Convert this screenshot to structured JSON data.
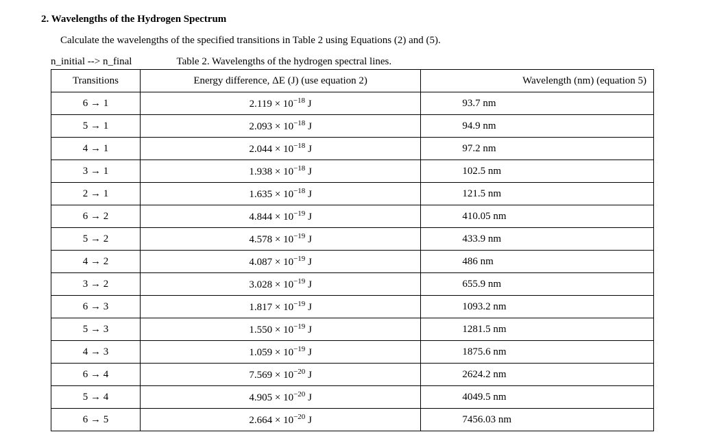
{
  "heading": "2. Wavelengths of the Hydrogen Spectrum",
  "instruction": "Calculate the wavelengths of the specified transitions in Table 2 using Equations (2) and (5).",
  "labels": {
    "left": "n_initial  -->  n_final",
    "caption": "Table 2. Wavelengths of the hydrogen spectral lines."
  },
  "headers": {
    "transitions": "Transitions",
    "energy": "Energy difference, ΔE (J)  (use equation 2)",
    "wavelength": "Wavelength (nm) (equation 5)"
  },
  "rows": [
    {
      "t": "6 → 1",
      "e_base": "2.119 × 10",
      "e_exp": "−18",
      "e_unit": " J",
      "w": "93.7 nm"
    },
    {
      "t": "5 → 1",
      "e_base": "2.093 × 10",
      "e_exp": "−18",
      "e_unit": " J",
      "w": "94.9 nm"
    },
    {
      "t": "4 → 1",
      "e_base": "2.044 × 10",
      "e_exp": "−18",
      "e_unit": " J",
      "w": "97.2 nm"
    },
    {
      "t": "3 → 1",
      "e_base": "1.938 × 10",
      "e_exp": "−18",
      "e_unit": " J",
      "w": "102.5 nm"
    },
    {
      "t": "2 → 1",
      "e_base": "1.635 × 10",
      "e_exp": "−18",
      "e_unit": " J",
      "w": "121.5 nm"
    },
    {
      "t": "6 → 2",
      "e_base": "4.844 × 10",
      "e_exp": "−19",
      "e_unit": " J",
      "w": "410.05 nm"
    },
    {
      "t": "5 → 2",
      "e_base": "4.578 × 10",
      "e_exp": "−19",
      "e_unit": " J",
      "w": "433.9 nm"
    },
    {
      "t": "4 → 2",
      "e_base": "4.087 × 10",
      "e_exp": "−19",
      "e_unit": " J",
      "w": "486 nm"
    },
    {
      "t": "3 → 2",
      "e_base": "3.028 × 10",
      "e_exp": "−19",
      "e_unit": " J",
      "w": "655.9 nm"
    },
    {
      "t": "6 → 3",
      "e_base": "1.817 × 10",
      "e_exp": "−19",
      "e_unit": " J",
      "w": "1093.2 nm"
    },
    {
      "t": "5 → 3",
      "e_base": "1.550 × 10",
      "e_exp": "−19",
      "e_unit": " J",
      "w": "1281.5 nm"
    },
    {
      "t": "4 → 3",
      "e_base": "1.059 × 10",
      "e_exp": "−19",
      "e_unit": " J",
      "w": "1875.6 nm"
    },
    {
      "t": "6 → 4",
      "e_base": "7.569 × 10",
      "e_exp": "−20",
      "e_unit": " J",
      "w": "2624.2 nm"
    },
    {
      "t": "5 → 4",
      "e_base": "4.905 × 10",
      "e_exp": "−20",
      "e_unit": " J",
      "w": "4049.5 nm"
    },
    {
      "t": "6 → 5",
      "e_base": "2.664 × 10",
      "e_exp": "−20",
      "e_unit": " J",
      "w": "7456.03 nm"
    }
  ]
}
